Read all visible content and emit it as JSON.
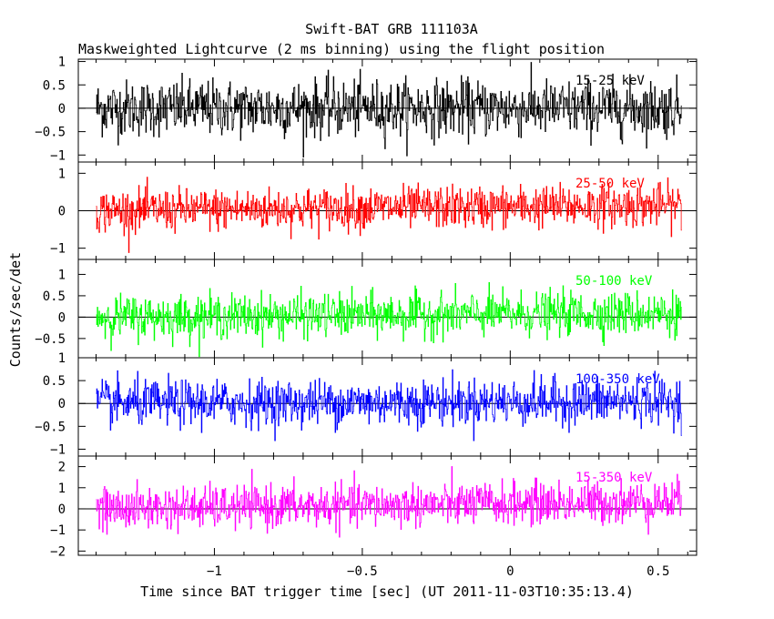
{
  "chart_data": {
    "type": "line",
    "title": "Swift-BAT GRB 111103A",
    "subtitle": "Maskweighted Lightcurve (2 ms binning) using the flight position",
    "xlabel": "Time since BAT trigger time [sec] (UT 2011-11-03T10:35:13.4)",
    "ylabel": "Counts/sec/det",
    "xlim": [
      -1.46,
      0.63
    ],
    "xticks": [
      -1,
      -0.5,
      0,
      0.5
    ],
    "xtick_labels": [
      "−1",
      "−0.5",
      "0",
      "0.5"
    ],
    "x_start": -1.4,
    "x_end": 0.58,
    "bin_width": 0.002,
    "grid": false,
    "panels": [
      {
        "name": "15-25 keV",
        "color": "#000000",
        "ylim": [
          -1.15,
          1.05
        ],
        "yticks": [
          -1,
          -0.5,
          0,
          0.5,
          1
        ],
        "ytick_labels": [
          "−1",
          "−0.5",
          "0",
          "0.5",
          "1"
        ],
        "noise_sigma": 0.3,
        "trend": [
          0,
          0
        ]
      },
      {
        "name": "25-50 keV",
        "color": "#ff0000",
        "ylim": [
          -1.3,
          1.3
        ],
        "yticks": [
          -1,
          0,
          1
        ],
        "ytick_labels": [
          "−1",
          "0",
          "1"
        ],
        "noise_sigma": 0.28,
        "trend": [
          0,
          0.15
        ]
      },
      {
        "name": "50-100 keV",
        "color": "#00ff00",
        "ylim": [
          -0.95,
          1.35
        ],
        "yticks": [
          -0.5,
          0,
          0.5,
          1
        ],
        "ytick_labels": [
          "−0.5",
          "0",
          "0.5",
          "1"
        ],
        "noise_sigma": 0.25,
        "trend": [
          0,
          0.1
        ]
      },
      {
        "name": "100-350 keV",
        "color": "#0000ff",
        "ylim": [
          -1.15,
          1.0
        ],
        "yticks": [
          -1,
          -0.5,
          0,
          0.5,
          1
        ],
        "ytick_labels": [
          "−1",
          "−0.5",
          "0",
          "0.5",
          "1"
        ],
        "noise_sigma": 0.25,
        "trend": [
          0,
          0.05
        ]
      },
      {
        "name": "15-350 keV",
        "color": "#ff00ff",
        "ylim": [
          -2.2,
          2.5
        ],
        "yticks": [
          -2,
          -1,
          0,
          1,
          2
        ],
        "ytick_labels": [
          "−2",
          "−1",
          "0",
          "1",
          "2"
        ],
        "noise_sigma": 0.5,
        "trend": [
          0,
          0.35
        ]
      }
    ]
  }
}
